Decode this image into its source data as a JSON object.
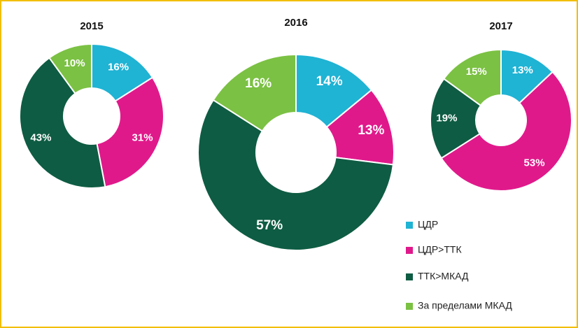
{
  "chart_data": {
    "type": "donut",
    "categories": [
      "ЦДР",
      "ЦДР>ТТК",
      "ТТК>МКАД",
      "За пределами МКАД"
    ],
    "colors": [
      "#1fb3d4",
      "#e0198b",
      "#0e5c43",
      "#7bc143"
    ],
    "series": [
      {
        "name": "2015",
        "values": [
          16,
          31,
          43,
          10
        ],
        "value_labels": [
          "16%",
          "31%",
          "43%",
          "10%"
        ]
      },
      {
        "name": "2016",
        "values": [
          14,
          13,
          57,
          16
        ],
        "value_labels": [
          "14%",
          "13%",
          "57%",
          "16%"
        ]
      },
      {
        "name": "2017",
        "values": [
          13,
          53,
          19,
          15
        ],
        "value_labels": [
          "13%",
          "53%",
          "19%",
          "15%"
        ]
      }
    ]
  }
}
